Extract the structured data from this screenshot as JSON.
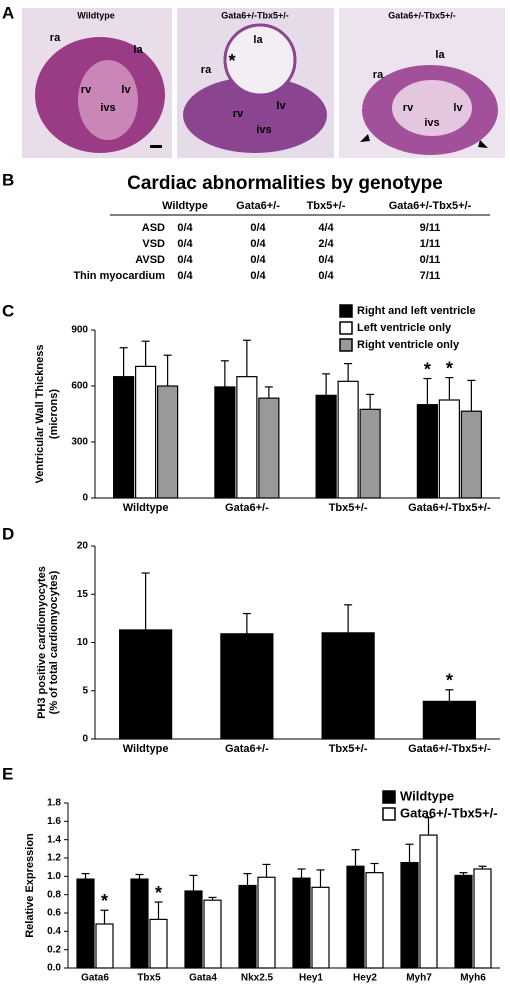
{
  "panels": [
    "A",
    "B",
    "C",
    "D",
    "E"
  ],
  "histology": [
    {
      "title": "Wildtype",
      "labels": [
        "ra",
        "la",
        "rv",
        "lv",
        "ivs"
      ]
    },
    {
      "title": "Gata6+/-Tbx5+/-",
      "labels": [
        "la",
        "*",
        "ra",
        "rv",
        "lv",
        "ivs"
      ]
    },
    {
      "title": "Gata6+/-Tbx5+/-",
      "labels": [
        "ra",
        "la",
        "rv",
        "lv",
        "ivs"
      ]
    }
  ],
  "table": {
    "title": "Cardiac abnormalities by genotype",
    "columns": [
      "Wildtype",
      "Gata6+/-",
      "Tbx5+/-",
      "Gata6+/-Tbx5+/-"
    ],
    "rows": [
      {
        "label": "ASD",
        "cells": [
          "0/4",
          "0/4",
          "4/4",
          "9/11"
        ]
      },
      {
        "label": "VSD",
        "cells": [
          "0/4",
          "0/4",
          "2/4",
          "1/11"
        ]
      },
      {
        "label": "AVSD",
        "cells": [
          "0/4",
          "0/4",
          "0/4",
          "0/11"
        ]
      },
      {
        "label": "Thin myocardium",
        "cells": [
          "0/4",
          "0/4",
          "0/4",
          "7/11"
        ]
      }
    ]
  },
  "chart_data": [
    {
      "type": "bar",
      "ylabel": [
        "Ventricular Wall Thickness",
        "(microns)"
      ],
      "categories": [
        "Wildtype",
        "Gata6+/-",
        "Tbx5+/-",
        "Gata6+/-Tbx5+/-"
      ],
      "series": [
        {
          "name": "Right and left ventricle",
          "color": "#000000",
          "values": [
            650,
            595,
            550,
            500
          ],
          "errors": [
            155,
            140,
            115,
            140
          ],
          "significance": [
            null,
            null,
            null,
            "*"
          ]
        },
        {
          "name": "Left ventricle only",
          "color": "#ffffff",
          "values": [
            705,
            650,
            625,
            525
          ],
          "errors": [
            135,
            195,
            95,
            120
          ],
          "significance": [
            null,
            null,
            null,
            "*"
          ]
        },
        {
          "name": "Right ventricle only",
          "color": "#999999",
          "values": [
            600,
            535,
            475,
            465
          ],
          "errors": [
            165,
            60,
            80,
            165
          ],
          "significance": [
            null,
            null,
            null,
            null
          ]
        }
      ],
      "ylim": [
        0,
        900
      ],
      "yticks": [
        0,
        300,
        600,
        900
      ]
    },
    {
      "type": "bar",
      "ylabel": [
        "PH3 positive cardiomyocytes",
        "(% of total cardiomyocytes)"
      ],
      "categories": [
        "Wildtype",
        "Gata6+/-",
        "Tbx5+/-",
        "Gata6+/-Tbx5+/-"
      ],
      "series": [
        {
          "color": "#000000",
          "values": [
            11.3,
            10.9,
            11.0,
            3.9
          ],
          "errors": [
            5.9,
            2.1,
            2.9,
            1.2
          ],
          "significance": [
            null,
            null,
            null,
            "*"
          ]
        }
      ],
      "ylim": [
        0,
        20
      ],
      "yticks": [
        0,
        5,
        10,
        15,
        20
      ]
    },
    {
      "type": "bar",
      "ylabel": [
        "Relative Expression"
      ],
      "categories": [
        "Gata6",
        "Tbx5",
        "Gata4",
        "Nkx2.5",
        "Hey1",
        "Hey2",
        "Myh7",
        "Myh6"
      ],
      "series": [
        {
          "name": "Wildtype",
          "color": "#000000",
          "values": [
            0.97,
            0.97,
            0.84,
            0.9,
            0.98,
            1.11,
            1.15,
            1.01
          ],
          "errors": [
            0.06,
            0.05,
            0.17,
            0.13,
            0.1,
            0.18,
            0.2,
            0.03
          ],
          "significance": [
            null,
            null,
            null,
            null,
            null,
            null,
            null,
            null
          ]
        },
        {
          "name": "Gata6+/-Tbx5+/-",
          "color": "#ffffff",
          "values": [
            0.48,
            0.53,
            0.74,
            0.99,
            0.88,
            1.04,
            1.45,
            1.08
          ],
          "errors": [
            0.15,
            0.19,
            0.03,
            0.14,
            0.19,
            0.1,
            0.19,
            0.03
          ],
          "significance": [
            "*",
            "*",
            null,
            null,
            null,
            null,
            null,
            null
          ]
        }
      ],
      "ylim": [
        0,
        1.8
      ],
      "yticks": [
        {
          "value": 0,
          "label": "0.0"
        },
        0.2,
        0.4,
        0.6,
        0.8,
        {
          "value": 1,
          "label": "1.0"
        },
        1.2,
        1.4,
        1.6,
        1.8
      ]
    }
  ]
}
